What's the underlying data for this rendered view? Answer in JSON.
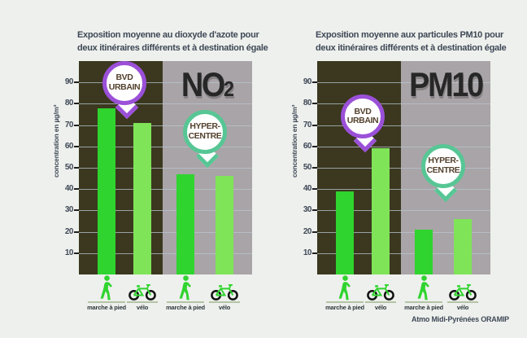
{
  "page": {
    "background": "#edf0ec",
    "attribution": "Atmo Midi-Pyrénées ORAMIP"
  },
  "colors": {
    "title_text": "#3f4857",
    "axis_text": "#3f4857",
    "dark_zone": "#3b381f",
    "gray_zone": "#a9a4a7",
    "gridline": "#b9c6d2",
    "bar_walk_green": "#2fd42e",
    "bar_bike_green": "#7fe457",
    "bubble_purple": "#9b50d8",
    "bubble_teal": "#57c695",
    "bubble_text": "#54422e",
    "big_label_text": "#272727",
    "legend_text": "#2e373d",
    "ground_line": "#b4c3a5",
    "bike_wheel": "#111111"
  },
  "chart_data": [
    {
      "type": "bar",
      "title_lines": [
        "Exposition moyenne au dioxyde d'azote pour",
        "deux itinéraires différents et à destination égale"
      ],
      "big_label": {
        "main": "NO",
        "sub": "2"
      },
      "ylabel": "concentration en µg/m³",
      "ylim": [
        0,
        100
      ],
      "yticks": [
        10,
        20,
        30,
        40,
        50,
        60,
        70,
        80,
        90
      ],
      "grid": true,
      "groups": [
        {
          "name_lines": [
            "BVD",
            "URBAIN"
          ],
          "ring_color": "#9b50d8",
          "tip_value": 75,
          "bars": [
            {
              "label": "marche à pied",
              "icon": "pedestrian",
              "value": 78,
              "color": "#2fd42e"
            },
            {
              "label": "vélo",
              "icon": "bicycle",
              "value": 71,
              "color": "#7fe457"
            }
          ]
        },
        {
          "name_lines": [
            "HYPER-",
            "CENTRE"
          ],
          "ring_color": "#57c695",
          "tip_value": 52,
          "bars": [
            {
              "label": "marche à pied",
              "icon": "pedestrian",
              "value": 47,
              "color": "#2fd42e"
            },
            {
              "label": "vélo",
              "icon": "bicycle",
              "value": 46,
              "color": "#7fe457"
            }
          ]
        }
      ]
    },
    {
      "type": "bar",
      "title_lines": [
        "Exposition moyenne aux particules PM10 pour",
        "deux itinéraires différents et à destination égale"
      ],
      "big_label": {
        "main": "PM10",
        "sub": ""
      },
      "ylabel": "concentration en µg/m³",
      "ylim": [
        0,
        100
      ],
      "yticks": [
        10,
        20,
        30,
        40,
        50,
        60,
        70,
        80,
        90
      ],
      "grid": true,
      "groups": [
        {
          "name_lines": [
            "BVD",
            "URBAIN"
          ],
          "ring_color": "#9b50d8",
          "tip_value": 59,
          "bars": [
            {
              "label": "marche à pied",
              "icon": "pedestrian",
              "value": 39,
              "color": "#2fd42e"
            },
            {
              "label": "vélo",
              "icon": "bicycle",
              "value": 59,
              "color": "#7fe457"
            }
          ]
        },
        {
          "name_lines": [
            "HYPER-",
            "CENTRE"
          ],
          "ring_color": "#57c695",
          "tip_value": 36,
          "bars": [
            {
              "label": "marche à pied",
              "icon": "pedestrian",
              "value": 21,
              "color": "#2fd42e"
            },
            {
              "label": "vélo",
              "icon": "bicycle",
              "value": 26,
              "color": "#7fe457"
            }
          ]
        }
      ]
    }
  ]
}
